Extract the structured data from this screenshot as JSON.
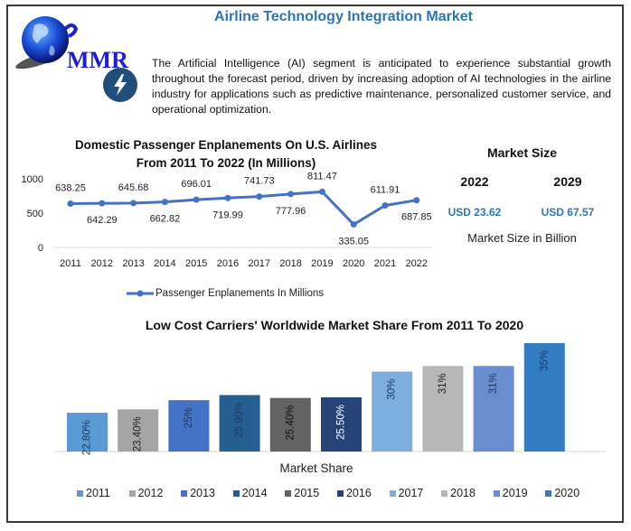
{
  "header": {
    "title": "Airline Technology Integration Market",
    "logo_text": "MMR",
    "logo_icon": "globe-icon",
    "feature_icon": "lightning-bolt-icon"
  },
  "intro_text": "The Artificial Intelligence (AI) segment is anticipated to experience substantial growth throughout the forecast period, driven by increasing adoption of AI technologies in the airline industry for applications such as predictive maintenance, personalized customer service, and operational optimization.",
  "market_size": {
    "title": "Market Size",
    "years": [
      "2022",
      "2029"
    ],
    "values": [
      "USD 23.62",
      "USD 67.57"
    ],
    "unit_note": "Market Size in Billion",
    "value_color": "#2e75b6"
  },
  "chart_data": [
    {
      "type": "line",
      "title": "Domestic Passenger Enplanements On U.S. Airlines From 2011 To 2022 (In Millions)",
      "title_lines": [
        "Domestic Passenger Enplanements On U.S. Airlines",
        "From 2011 To 2022 (In Millions)"
      ],
      "x": [
        "2011",
        "2012",
        "2013",
        "2014",
        "2015",
        "2016",
        "2017",
        "2018",
        "2019",
        "2020",
        "2021",
        "2022"
      ],
      "series": [
        {
          "name": "Passenger Enplanements In Millions",
          "values": [
            638.25,
            642.29,
            645.68,
            662.82,
            696.01,
            719.99,
            741.73,
            777.96,
            811.47,
            335.05,
            611.91,
            687.85
          ],
          "labels": [
            "638.25",
            "642.29",
            "645.68",
            "662.82",
            "696.01",
            "719.99",
            "741.73",
            "777.96",
            "811.47",
            "335.05",
            "611.91",
            "687.85"
          ],
          "label_pos": [
            "above",
            "below",
            "above",
            "below",
            "above",
            "below",
            "above",
            "below",
            "above",
            "below",
            "above",
            "below"
          ],
          "color": "#4472c4"
        }
      ],
      "ylim": [
        0,
        1000
      ],
      "yticks": [
        "0",
        "500",
        "1000"
      ],
      "xlabel": "",
      "ylabel": "",
      "grid": false,
      "legend": "bottom"
    },
    {
      "type": "bar",
      "title": "Low Cost Carriers' Worldwide Market Share From 2011 To 2020",
      "categories": [
        "2011",
        "2012",
        "2013",
        "2014",
        "2015",
        "2016",
        "2017",
        "2018",
        "2019",
        "2020"
      ],
      "values": [
        22.8,
        23.4,
        25,
        25.9,
        25.4,
        25.5,
        30,
        31,
        31,
        35
      ],
      "labels": [
        "22.80%",
        "23.40%",
        "25%",
        "25.90%",
        "25.40%",
        "25.50%",
        "30%",
        "31%",
        "31%",
        "35%"
      ],
      "colors": [
        "#5b9bd5",
        "#a5a5a5",
        "#4472c4",
        "#255e91",
        "#636363",
        "#264478",
        "#7cafdd",
        "#b7b7b7",
        "#698ed0",
        "#327dc2"
      ],
      "label_colors": [
        "#1f3864",
        "#222222",
        "#1f3864",
        "#1f3864",
        "#111111",
        "#ffffff",
        "#1f3864",
        "#222222",
        "#1f3864",
        "#1f3864"
      ],
      "xlabel": "Market Share",
      "ylabel": "",
      "ylim": [
        0,
        36
      ],
      "grid": false,
      "legend": "bottom"
    }
  ]
}
